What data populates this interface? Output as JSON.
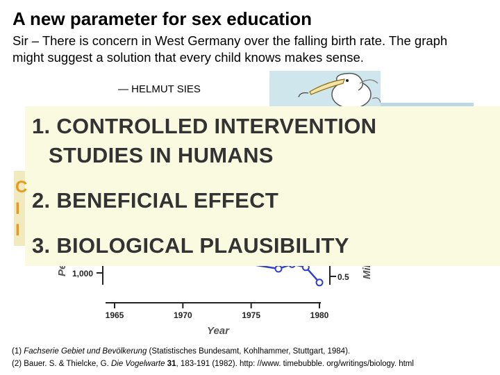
{
  "slide": {
    "title": "A new parameter for sex education",
    "letter_line1": "Sir – There is concern in West Germany over the falling birth rate. The graph",
    "letter_line2": "might suggest a solution that every child knows makes sense.",
    "signature": "— HELMUT SIES"
  },
  "overlay": {
    "point1_line1": "1. CONTROLLED INTERVENTION",
    "point1_line2": "STUDIES IN HUMANS",
    "point2": "2. BENEFICIAL EFFECT",
    "point3": "3. BIOLOGICAL PLAUSIBILITY"
  },
  "partial_hidden": {
    "glyph_1": "C",
    "glyph_2": "I",
    "glyph_3": "I"
  },
  "colors": {
    "overlay_bg": "#fafae1",
    "point_text": "#333333",
    "series_line": "#3040c8",
    "marker_fill": "#ffffff"
  },
  "chart_data": {
    "type": "line",
    "xlabel": "Year",
    "ylabel_left_fragment": "Pe",
    "ylabel_right_fragment": "Milli",
    "x_ticks": [
      "1965",
      "1970",
      "1975",
      "1980"
    ],
    "y_left_visible_tick": "1,000",
    "y_right_visible_tick": "0.5",
    "xlim": [
      1965,
      1980
    ],
    "series": [
      {
        "x": [
          1977,
          1978,
          1979,
          1980
        ],
        "y_right_axis": [
          0.55,
          0.58,
          0.56,
          0.46
        ]
      }
    ]
  },
  "references": {
    "ref1_num": "(1)",
    "ref1_title": "Fachserie Gebiet und Bevölkerung",
    "ref1_rest": "(Statistisches Bundesamt, Kohlhammer, Stuttgart, 1984).",
    "ref2_num": "(2) Bauer. S. & Thielcke, G.",
    "ref2_journal": "Die Vogelwarte",
    "ref2_volume": "31",
    "ref2_rest": ", 183-191 (1982). http: //www. timebubble. org/writings/biology. html"
  }
}
